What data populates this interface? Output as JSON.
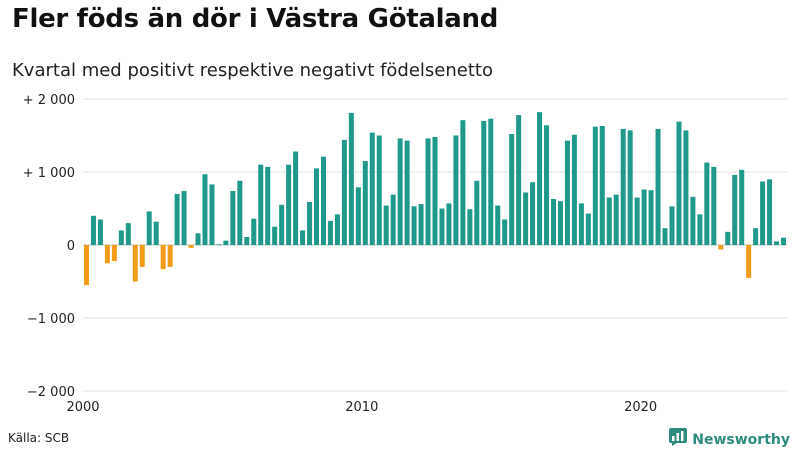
{
  "chart_data": {
    "type": "bar",
    "title": "Fler föds än dör i Västra Götaland",
    "subtitle": "Kvartal med positivt respektive negativt födelsenetto",
    "xlabel": "",
    "ylabel": "",
    "ylim": [
      -2000,
      2000
    ],
    "yticks": [
      {
        "value": 2000,
        "label": "+ 2 000"
      },
      {
        "value": 1000,
        "label": "+ 1 000"
      },
      {
        "value": 0,
        "label": "0"
      },
      {
        "value": -1000,
        "label": "−1 000"
      },
      {
        "value": -2000,
        "label": "−2 000"
      }
    ],
    "xticks": [
      {
        "value": 2000,
        "label": "2000"
      },
      {
        "value": 2010,
        "label": "2010"
      },
      {
        "value": 2020,
        "label": "2020"
      }
    ],
    "x_start": 2000,
    "x_end": 2025.25,
    "positive_color": "#1f9a8a",
    "negative_color": "#f39c1a",
    "values": [
      -550,
      400,
      350,
      -250,
      -220,
      200,
      300,
      -500,
      -300,
      460,
      320,
      -330,
      -300,
      700,
      740,
      -40,
      160,
      970,
      830,
      10,
      60,
      740,
      880,
      110,
      360,
      1100,
      1070,
      250,
      550,
      1100,
      1280,
      200,
      590,
      1050,
      1210,
      330,
      420,
      1440,
      1810,
      790,
      1150,
      1540,
      1500,
      540,
      690,
      1460,
      1430,
      530,
      560,
      1460,
      1480,
      500,
      570,
      1500,
      1710,
      490,
      880,
      1700,
      1730,
      540,
      350,
      1520,
      1780,
      720,
      860,
      1820,
      1640,
      630,
      600,
      1430,
      1510,
      570,
      430,
      1620,
      1630,
      650,
      690,
      1590,
      1570,
      650,
      760,
      750,
      1590,
      230,
      530,
      1690,
      1570,
      660,
      420,
      1130,
      1070,
      -60,
      180,
      960,
      1030,
      -450,
      230,
      870,
      900,
      50,
      100
    ]
  },
  "footer": {
    "source": "Källa: SCB",
    "brand": "Newsworthy"
  },
  "colors": {
    "accent": "#2e8b7d",
    "grid": "#e2e2e2"
  }
}
